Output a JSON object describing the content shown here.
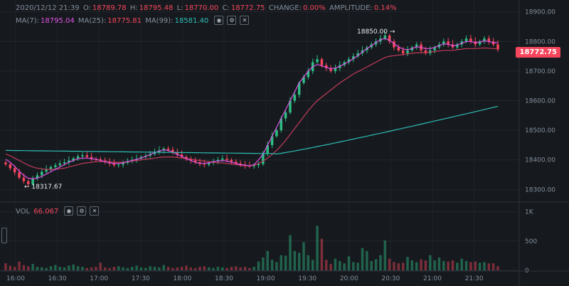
{
  "header": {
    "datetime": "2020/12/12 21:39",
    "open_label": "O:",
    "open": "18789.78",
    "high_label": "H:",
    "high": "18795.48",
    "low_label": "L:",
    "low": "18770.00",
    "close_label": "C:",
    "close": "18772.75",
    "change_label": "CHANGE:",
    "change": "0.00%",
    "amplitude_label": "AMPLITUDE:",
    "amplitude": "0.14%"
  },
  "ma_legend": {
    "ma7_label": "MA(7):",
    "ma7": "18795.04",
    "ma25_label": "MA(25):",
    "ma25": "18775.81",
    "ma99_label": "MA(99):",
    "ma99": "18581.40"
  },
  "vol_legend": {
    "label": "VOL",
    "value": "66.067"
  },
  "last_price_tag": "18772.75",
  "annotations": {
    "high": "18850.00",
    "low": "18317.67"
  },
  "colors": {
    "up": "#2ebd85",
    "down": "#f6465d",
    "ma7": "#e052e6",
    "ma25": "#c23a5b",
    "ma99": "#2ebdb5",
    "bg": "#161a1e"
  },
  "chart_data": {
    "type": "candlestick",
    "price_axis": {
      "ticks": [
        18300,
        18400,
        18500,
        18600,
        18700,
        18800,
        18900
      ],
      "labels": [
        "18300.00",
        "18400.00",
        "18500.00",
        "18600.00",
        "18700.00",
        "18800.00",
        "18900.00"
      ],
      "range": [
        18260,
        18940
      ]
    },
    "volume_axis": {
      "ticks": [
        0,
        500,
        1000
      ],
      "labels": [
        "0",
        "500",
        "1K"
      ],
      "range": [
        0,
        1080
      ]
    },
    "time_ticks": [
      "16:00",
      "16:30",
      "17:00",
      "17:30",
      "18:00",
      "18:30",
      "19:00",
      "19:30",
      "20:00",
      "20:30",
      "21:00",
      "21:30"
    ],
    "candles_close": [
      18385,
      18372,
      18358,
      18340,
      18328,
      18318,
      18338,
      18348,
      18360,
      18368,
      18376,
      18382,
      18388,
      18392,
      18398,
      18405,
      18412,
      18416,
      18410,
      18404,
      18402,
      18398,
      18394,
      18388,
      18382,
      18384,
      18390,
      18396,
      18400,
      18404,
      18410,
      18414,
      18420,
      18426,
      18432,
      18438,
      18434,
      18426,
      18418,
      18410,
      18404,
      18398,
      18392,
      18386,
      18384,
      18390,
      18396,
      18400,
      18404,
      18400,
      18394,
      18388,
      18384,
      18380,
      18378,
      18382,
      18386,
      18420,
      18450,
      18480,
      18500,
      18540,
      18560,
      18600,
      18620,
      18660,
      18680,
      18700,
      18730,
      18740,
      18720,
      18710,
      18700,
      18710,
      18720,
      18730,
      18740,
      18750,
      18760,
      18770,
      18780,
      18790,
      18800,
      18810,
      18820,
      18800,
      18780,
      18770,
      18760,
      18770,
      18780,
      18790,
      18770,
      18760,
      18770,
      18780,
      18790,
      18800,
      18790,
      18780,
      18790,
      18800,
      18810,
      18800,
      18790,
      18800,
      18810,
      18800,
      18790,
      18773
    ],
    "ma7": [
      18402,
      18392,
      18378,
      18362,
      18348,
      18338,
      18336,
      18338,
      18344,
      18352,
      18360,
      18368,
      18376,
      18384,
      18392,
      18398,
      18404,
      18406,
      18406,
      18404,
      18402,
      18398,
      18394,
      18390,
      18388,
      18388,
      18390,
      18394,
      18398,
      18402,
      18406,
      18412,
      18418,
      18424,
      18430,
      18434,
      18432,
      18426,
      18418,
      18412,
      18404,
      18398,
      18392,
      18388,
      18388,
      18390,
      18394,
      18396,
      18398,
      18396,
      18392,
      18388,
      18384,
      18382,
      18380,
      18384,
      18400,
      18420,
      18450,
      18480,
      18510,
      18540,
      18570,
      18600,
      18630,
      18660,
      18680,
      18700,
      18715,
      18722,
      18718,
      18712,
      18708,
      18710,
      18716,
      18724,
      18732,
      18742,
      18752,
      18764,
      18776,
      18786,
      18796,
      18806,
      18810,
      18804,
      18792,
      18782,
      18774,
      18772,
      18776,
      18782,
      18780,
      18776,
      18776,
      18780,
      18786,
      18792,
      18790,
      18786,
      18788,
      18794,
      18800,
      18800,
      18796,
      18798,
      18802,
      18800,
      18796,
      18795
    ],
    "ma25": [
      18420,
      18414,
      18406,
      18398,
      18390,
      18382,
      18376,
      18372,
      18370,
      18368,
      18368,
      18368,
      18370,
      18372,
      18376,
      18380,
      18384,
      18388,
      18390,
      18392,
      18394,
      18394,
      18394,
      18394,
      18392,
      18392,
      18392,
      18394,
      18396,
      18398,
      18400,
      18402,
      18404,
      18406,
      18408,
      18410,
      18410,
      18410,
      18408,
      18406,
      18404,
      18402,
      18400,
      18398,
      18396,
      18394,
      18392,
      18390,
      18390,
      18388,
      18386,
      18384,
      18382,
      18380,
      18380,
      18382,
      18388,
      18396,
      18406,
      18418,
      18432,
      18448,
      18466,
      18486,
      18506,
      18526,
      18546,
      18566,
      18584,
      18600,
      18612,
      18624,
      18636,
      18648,
      18660,
      18670,
      18680,
      18690,
      18698,
      18706,
      18714,
      18722,
      18730,
      18738,
      18746,
      18750,
      18752,
      18754,
      18756,
      18758,
      18760,
      18762,
      18762,
      18762,
      18764,
      18766,
      18768,
      18770,
      18770,
      18770,
      18772,
      18774,
      18776,
      18776,
      18776,
      18777,
      18778,
      18777,
      18776,
      18776
    ],
    "ma99_start": 18432,
    "ma99_end": 18581,
    "volumes": [
      120,
      80,
      60,
      150,
      90,
      70,
      110,
      60,
      50,
      40,
      70,
      90,
      60,
      50,
      80,
      100,
      70,
      60,
      40,
      50,
      60,
      130,
      50,
      40,
      60,
      70,
      50,
      40,
      60,
      80,
      50,
      40,
      70,
      60,
      50,
      90,
      60,
      40,
      50,
      60,
      80,
      50,
      40,
      60,
      70,
      50,
      40,
      60,
      50,
      40,
      60,
      70,
      50,
      60,
      40,
      60,
      150,
      220,
      330,
      180,
      140,
      260,
      250,
      600,
      330,
      300,
      480,
      260,
      180,
      760,
      540,
      180,
      110,
      200,
      160,
      120,
      240,
      140,
      130,
      380,
      330,
      160,
      190,
      260,
      510,
      200,
      140,
      120,
      130,
      230,
      170,
      140,
      190,
      170,
      260,
      170,
      220,
      160,
      150,
      170,
      130,
      200,
      160,
      140,
      150,
      130,
      140,
      120,
      120,
      70
    ]
  }
}
